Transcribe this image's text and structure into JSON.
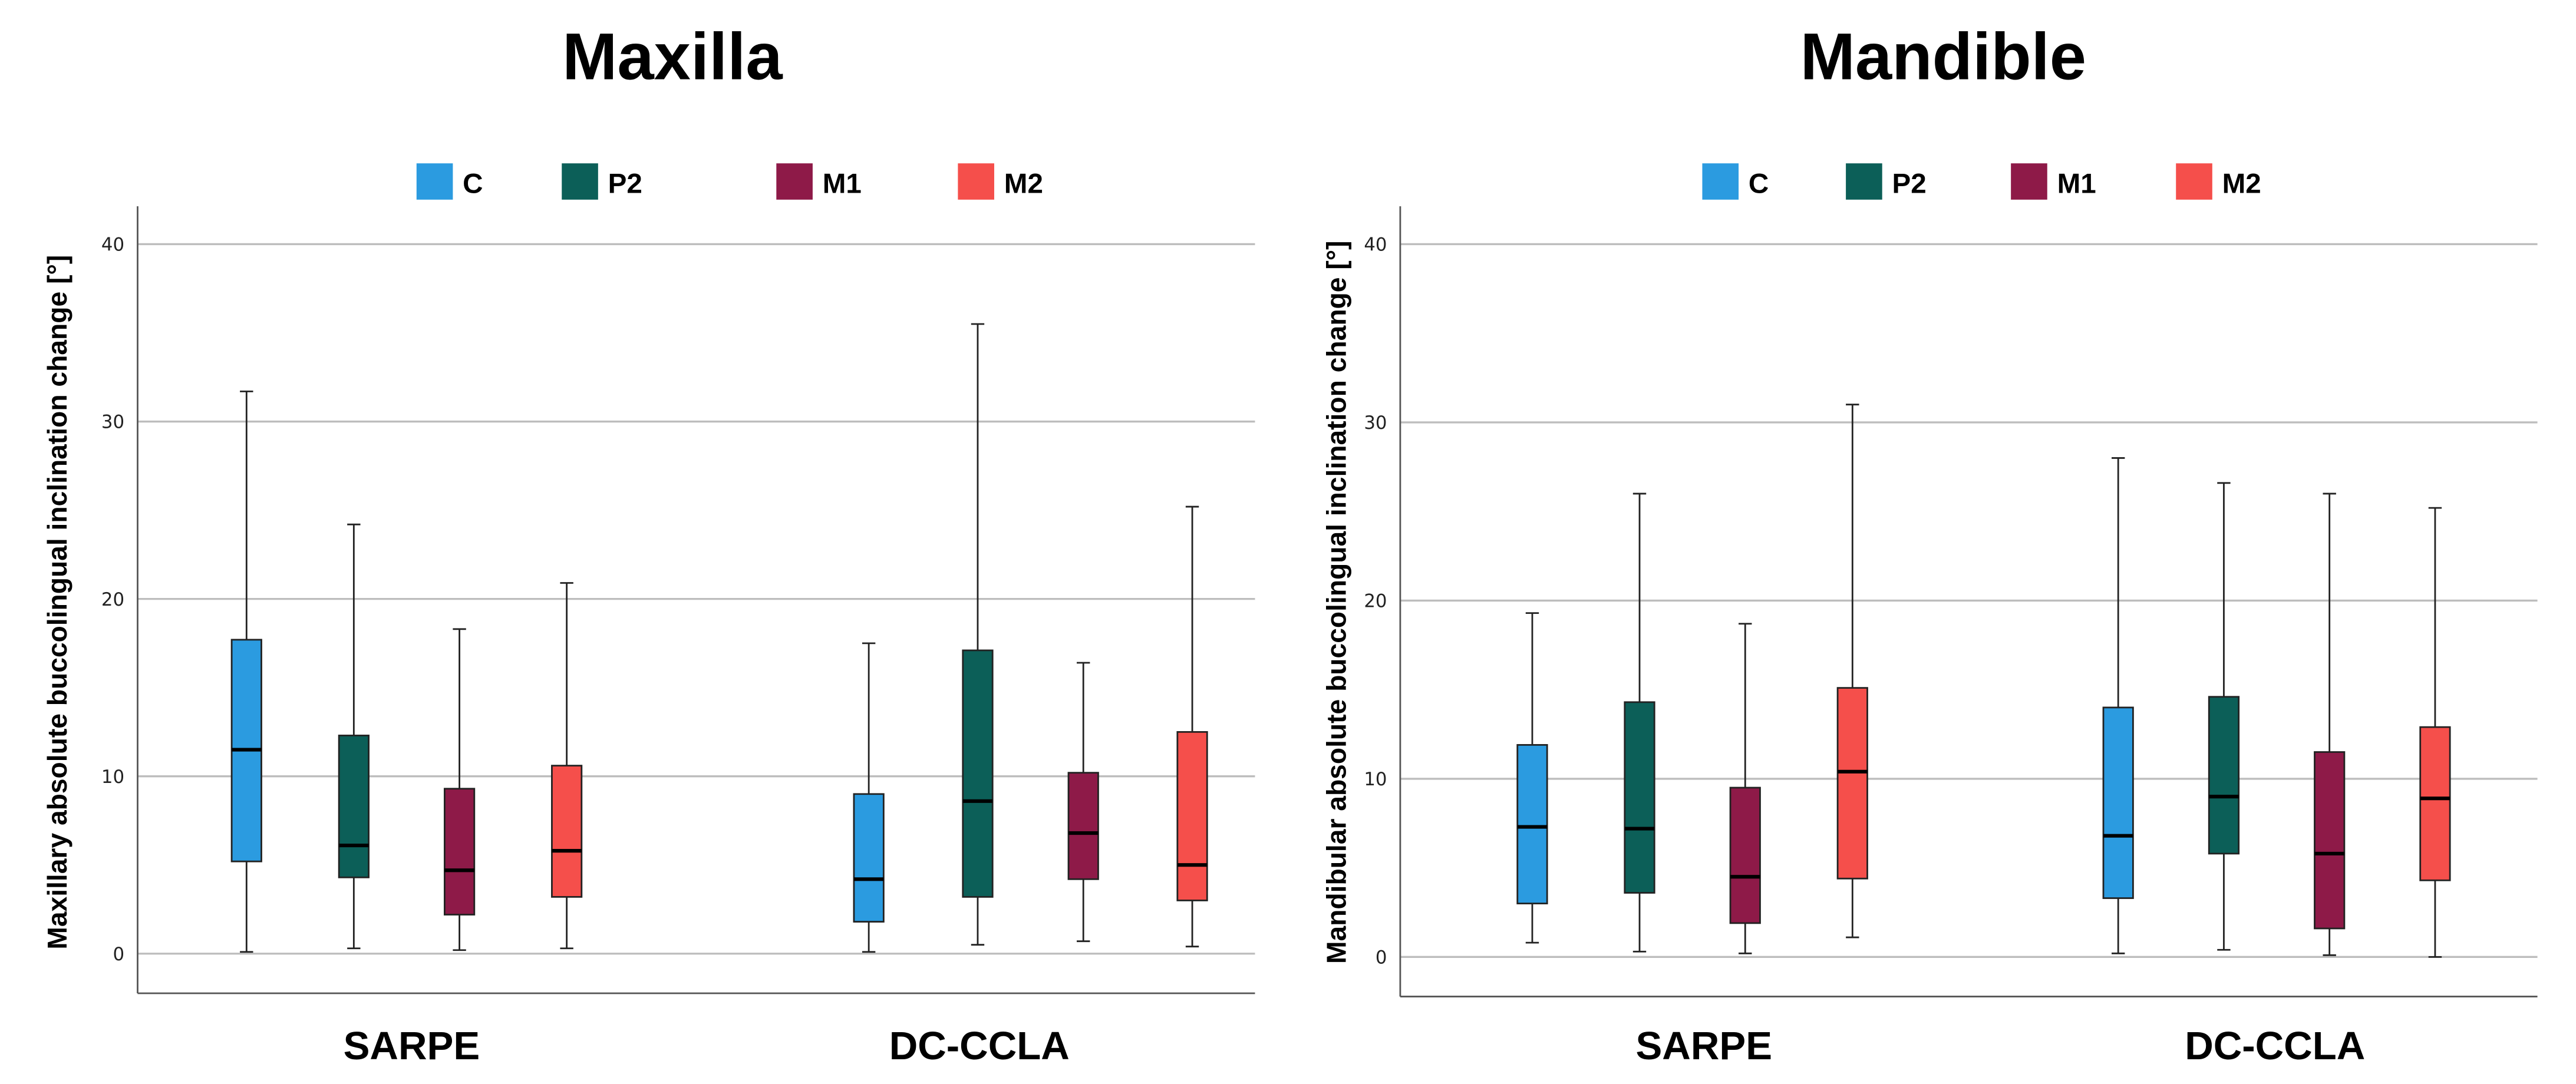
{
  "chart_data": [
    {
      "type": "boxplot",
      "title": "Maxilla",
      "ylabel": "Maxillary absolute buccolingual inclination change [°]",
      "xlabel": "",
      "ylim": [
        -2,
        42
      ],
      "yticks": [
        0,
        10,
        20,
        30,
        40
      ],
      "grid": true,
      "legend_position": "top-center",
      "categories": [
        "SARPE",
        "DC-CCLA"
      ],
      "series": [
        {
          "name": "C",
          "color": "#2b9be0",
          "boxes": [
            {
              "min": 0.1,
              "q1": 5.2,
              "median": 11.5,
              "q3": 17.7,
              "max": 31.7
            },
            {
              "min": 0.1,
              "q1": 1.8,
              "median": 4.2,
              "q3": 9.0,
              "max": 17.5
            }
          ]
        },
        {
          "name": "P2",
          "color": "#0c5f58",
          "boxes": [
            {
              "min": 0.3,
              "q1": 4.3,
              "median": 6.1,
              "q3": 12.3,
              "max": 24.2
            },
            {
              "min": 0.5,
              "q1": 3.2,
              "median": 8.6,
              "q3": 17.1,
              "max": 35.5
            }
          ]
        },
        {
          "name": "M1",
          "color": "#8e1a48",
          "boxes": [
            {
              "min": 0.2,
              "q1": 2.2,
              "median": 4.7,
              "q3": 9.3,
              "max": 18.3
            },
            {
              "min": 0.7,
              "q1": 4.2,
              "median": 6.8,
              "q3": 10.2,
              "max": 16.4
            }
          ]
        },
        {
          "name": "M2",
          "color": "#f54f4b",
          "boxes": [
            {
              "min": 0.3,
              "q1": 3.2,
              "median": 5.8,
              "q3": 10.6,
              "max": 20.9
            },
            {
              "min": 0.4,
              "q1": 3.0,
              "median": 5.0,
              "q3": 12.5,
              "max": 25.2
            }
          ]
        }
      ]
    },
    {
      "type": "boxplot",
      "title": "Mandible",
      "ylabel": "Mandibular absolute buccolingual inclination change [°]",
      "xlabel": "",
      "ylim": [
        -2,
        42
      ],
      "yticks": [
        0,
        10,
        20,
        30,
        40
      ],
      "grid": true,
      "legend_position": "top-center",
      "categories": [
        "SARPE",
        "DC-CCLA"
      ],
      "series": [
        {
          "name": "C",
          "color": "#2b9be0",
          "boxes": [
            {
              "min": 0.8,
              "q1": 3.0,
              "median": 7.3,
              "q3": 11.9,
              "max": 19.3
            },
            {
              "min": 0.2,
              "q1": 3.3,
              "median": 6.8,
              "q3": 14.0,
              "max": 28.0
            }
          ]
        },
        {
          "name": "P2",
          "color": "#0c5f58",
          "boxes": [
            {
              "min": 0.3,
              "q1": 3.6,
              "median": 7.2,
              "q3": 14.3,
              "max": 26.0
            },
            {
              "min": 0.4,
              "q1": 5.8,
              "median": 9.0,
              "q3": 14.6,
              "max": 26.6
            }
          ]
        },
        {
          "name": "M1",
          "color": "#8e1a48",
          "boxes": [
            {
              "min": 0.2,
              "q1": 1.9,
              "median": 4.5,
              "q3": 9.5,
              "max": 18.7
            },
            {
              "min": 0.1,
              "q1": 1.6,
              "median": 5.8,
              "q3": 11.5,
              "max": 26.0
            }
          ]
        },
        {
          "name": "M2",
          "color": "#f54f4b",
          "boxes": [
            {
              "min": 1.1,
              "q1": 4.4,
              "median": 10.4,
              "q3": 15.1,
              "max": 31.0
            },
            {
              "min": 0.0,
              "q1": 4.3,
              "median": 8.9,
              "q3": 12.9,
              "max": 25.2
            }
          ]
        }
      ]
    }
  ]
}
